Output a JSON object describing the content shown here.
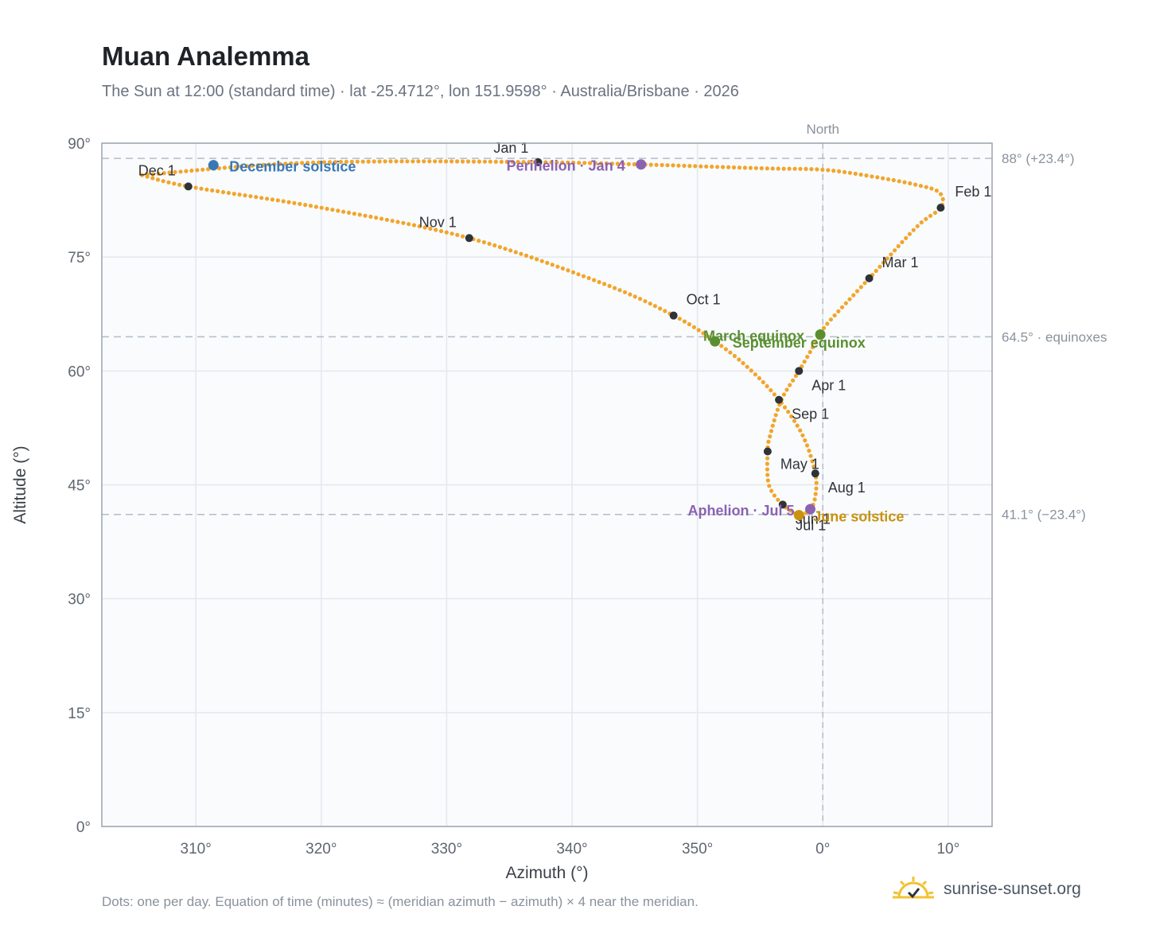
{
  "header": {
    "title": "Muan Analemma",
    "subtitle": "The Sun at 12:00 (standard time) · lat -25.4712°, lon 151.9598° · Australia/Brisbane · 2026"
  },
  "footer": {
    "note": "Dots: one per day. Equation of time (minutes) ≈ (meridian azimuth − azimuth) × 4 near the meridian.",
    "brand": "sunrise-sunset.org"
  },
  "chart_data": {
    "type": "scatter",
    "xlabel": "Azimuth (°)",
    "ylabel": "Altitude (°)",
    "xlim": [
      -57.5,
      13.5
    ],
    "ylim": [
      0,
      90
    ],
    "x_ticks": [
      -50,
      -40,
      -30,
      -20,
      -10,
      0,
      10
    ],
    "x_tick_labels": [
      "310°",
      "320°",
      "330°",
      "340°",
      "350°",
      "0°",
      "10°"
    ],
    "y_ticks": [
      0,
      15,
      30,
      45,
      60,
      75,
      90
    ],
    "y_tick_labels": [
      "0°",
      "15°",
      "30°",
      "45°",
      "60°",
      "75°",
      "90°"
    ],
    "grid": true,
    "north_line": {
      "x": 0,
      "label": "North"
    },
    "reference_lines": [
      {
        "y": 88.0,
        "label": "88° (+23.4°)"
      },
      {
        "y": 64.5,
        "label": "64.5° · equinoxes"
      },
      {
        "y": 41.1,
        "label": "41.1° (−23.4°)"
      }
    ],
    "colors": {
      "path": "#f2a52b",
      "month_marker": "#2f3338",
      "december_solstice": "#3a78b5",
      "june_solstice": "#c9920f",
      "equinox": "#5a8f30",
      "apsis": "#8b62b0",
      "plot_bg": "#f9fbfd",
      "grid": "#e3e8ee",
      "frame": "#9aa4b0"
    },
    "months": [
      {
        "label": "Jan 1",
        "az": -22.7,
        "alt": 87.5
      },
      {
        "label": "Feb 1",
        "az": 9.4,
        "alt": 81.5
      },
      {
        "label": "Mar 1",
        "az": 3.7,
        "alt": 72.2
      },
      {
        "label": "Apr 1",
        "az": -1.9,
        "alt": 60.0
      },
      {
        "label": "May 1",
        "az": -4.4,
        "alt": 49.4
      },
      {
        "label": "Jun 1",
        "az": -3.2,
        "alt": 42.4
      },
      {
        "label": "Jul 1",
        "az": -1.9,
        "alt": 41.1
      },
      {
        "label": "Aug 1",
        "az": -0.6,
        "alt": 46.5
      },
      {
        "label": "Sep 1",
        "az": -3.5,
        "alt": 56.2
      },
      {
        "label": "Oct 1",
        "az": -11.9,
        "alt": 67.3
      },
      {
        "label": "Nov 1",
        "az": -28.2,
        "alt": 77.5
      },
      {
        "label": "Dec 1",
        "az": -50.6,
        "alt": 84.3
      }
    ],
    "events": [
      {
        "label": "December solstice",
        "az": -48.6,
        "alt": 87.1,
        "kind": "december_solstice"
      },
      {
        "label": "June solstice",
        "az": -1.9,
        "alt": 41.0,
        "kind": "june_solstice"
      },
      {
        "label": "March equinox",
        "az": -0.2,
        "alt": 64.8,
        "kind": "equinox"
      },
      {
        "label": "September equinox",
        "az": -8.6,
        "alt": 63.9,
        "kind": "equinox"
      },
      {
        "label": "Perihelion · Jan 4",
        "az": -14.5,
        "alt": 87.2,
        "kind": "apsis"
      },
      {
        "label": "Aphelion · Jul 5",
        "az": -1.0,
        "alt": 41.8,
        "kind": "apsis"
      }
    ],
    "path_keypoints": [
      [
        -54.3,
        85.8
      ],
      [
        -44.0,
        87.2
      ],
      [
        -35.0,
        87.6
      ],
      [
        -22.7,
        87.5
      ],
      [
        -14.5,
        87.2
      ],
      [
        -5.0,
        86.7
      ],
      [
        0,
        86.5
      ],
      [
        4.0,
        85.6
      ],
      [
        7.5,
        84.5
      ],
      [
        9.3,
        83.5
      ],
      [
        9.4,
        81.5
      ],
      [
        7.5,
        79.0
      ],
      [
        3.7,
        72.2
      ],
      [
        0.5,
        66.5
      ],
      [
        -0.2,
        64.8
      ],
      [
        -1.9,
        60.0
      ],
      [
        -3.3,
        56.2
      ],
      [
        -4.2,
        51.5
      ],
      [
        -4.4,
        49.4
      ],
      [
        -4.3,
        45.0
      ],
      [
        -3.2,
        42.4
      ],
      [
        -1.9,
        41.1
      ],
      [
        -1.0,
        41.8
      ],
      [
        -0.6,
        43.5
      ],
      [
        -0.6,
        46.5
      ],
      [
        -1.6,
        51.5
      ],
      [
        -3.5,
        56.2
      ],
      [
        -6.0,
        60.5
      ],
      [
        -8.6,
        63.9
      ],
      [
        -11.9,
        67.3
      ],
      [
        -17.5,
        71.5
      ],
      [
        -28.2,
        77.5
      ],
      [
        -40.0,
        81.5
      ],
      [
        -50.6,
        84.3
      ],
      [
        -54.3,
        85.8
      ]
    ]
  }
}
